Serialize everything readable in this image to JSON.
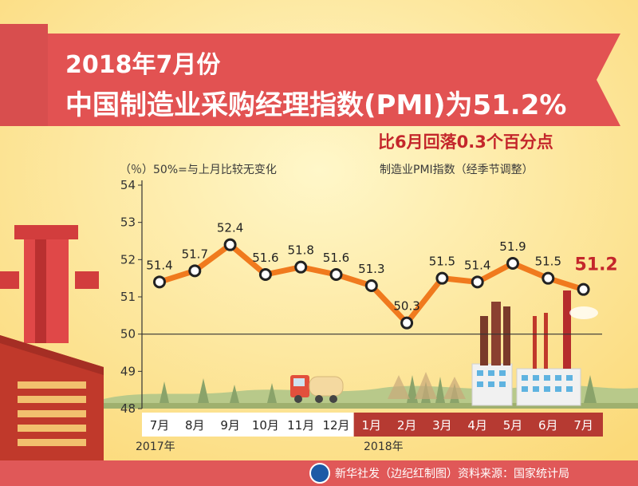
{
  "header": {
    "title_line1": "2018年7月份",
    "title_line2": "中国制造业采购经理指数(PMI)为51.2%",
    "subtitle": "比6月回落0.3个百分点"
  },
  "notes": {
    "left": "（％）50%=与上月比较无变化",
    "right": "制造业PMI指数（经季节调整）"
  },
  "chart_data": {
    "type": "line",
    "title": "",
    "ylabel": "（％）",
    "ylim": [
      48,
      54
    ],
    "yticks": [
      48,
      49,
      50,
      51,
      52,
      53,
      54
    ],
    "reference_line": 50,
    "categories": [
      "7月",
      "8月",
      "9月",
      "10月",
      "11月",
      "12月",
      "1月",
      "2月",
      "3月",
      "4月",
      "5月",
      "6月",
      "7月"
    ],
    "values": [
      51.4,
      51.7,
      52.4,
      51.6,
      51.8,
      51.6,
      51.3,
      50.3,
      51.5,
      51.4,
      51.9,
      51.5,
      51.2
    ],
    "value_labels": [
      "51.4",
      "51.7",
      "52.4",
      "51.6",
      "51.8",
      "51.6",
      "51.3",
      "50.3",
      "51.5",
      "51.4",
      "51.9",
      "51.5",
      "51.2"
    ],
    "year_groups": [
      {
        "label": "2017年",
        "count": 6
      },
      {
        "label": "2018年",
        "count": 7
      }
    ],
    "colors": {
      "line": "#f07a1e",
      "highlight_label": "#c4262b",
      "year_2017_band": "#ffffff",
      "year_2018_band": "#b63a32"
    }
  },
  "footer": {
    "text": "新华社发（边纪红制图）资料来源：国家统计局"
  }
}
